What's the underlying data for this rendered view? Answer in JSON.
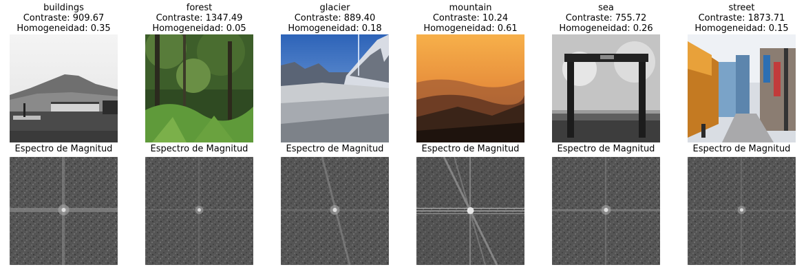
{
  "chart_data": {
    "type": "image-grid",
    "spectrum_label": "Espectro de Magnitud",
    "panels": [
      {
        "category": "buildings",
        "contraste_label": "Contraste: 909.67",
        "homogeneidad_label": "Homogeneidad: 0.35",
        "contraste": 909.67,
        "homogeneidad": 0.35
      },
      {
        "category": "forest",
        "contraste_label": "Contraste: 1347.49",
        "homogeneidad_label": "Homogeneidad: 0.05",
        "contraste": 1347.49,
        "homogeneidad": 0.05
      },
      {
        "category": "glacier",
        "contraste_label": "Contraste: 889.40",
        "homogeneidad_label": "Homogeneidad: 0.18",
        "contraste": 889.4,
        "homogeneidad": 0.18
      },
      {
        "category": "mountain",
        "contraste_label": "Contraste: 10.24",
        "homogeneidad_label": "Homogeneidad: 0.61",
        "contraste": 10.24,
        "homogeneidad": 0.61
      },
      {
        "category": "sea",
        "contraste_label": "Contraste: 755.72",
        "homogeneidad_label": "Homogeneidad: 0.26",
        "contraste": 755.72,
        "homogeneidad": 0.26
      },
      {
        "category": "street",
        "contraste_label": "Contraste: 1873.71",
        "homogeneidad_label": "Homogeneidad: 0.15",
        "contraste": 1873.71,
        "homogeneidad": 0.15
      }
    ]
  }
}
